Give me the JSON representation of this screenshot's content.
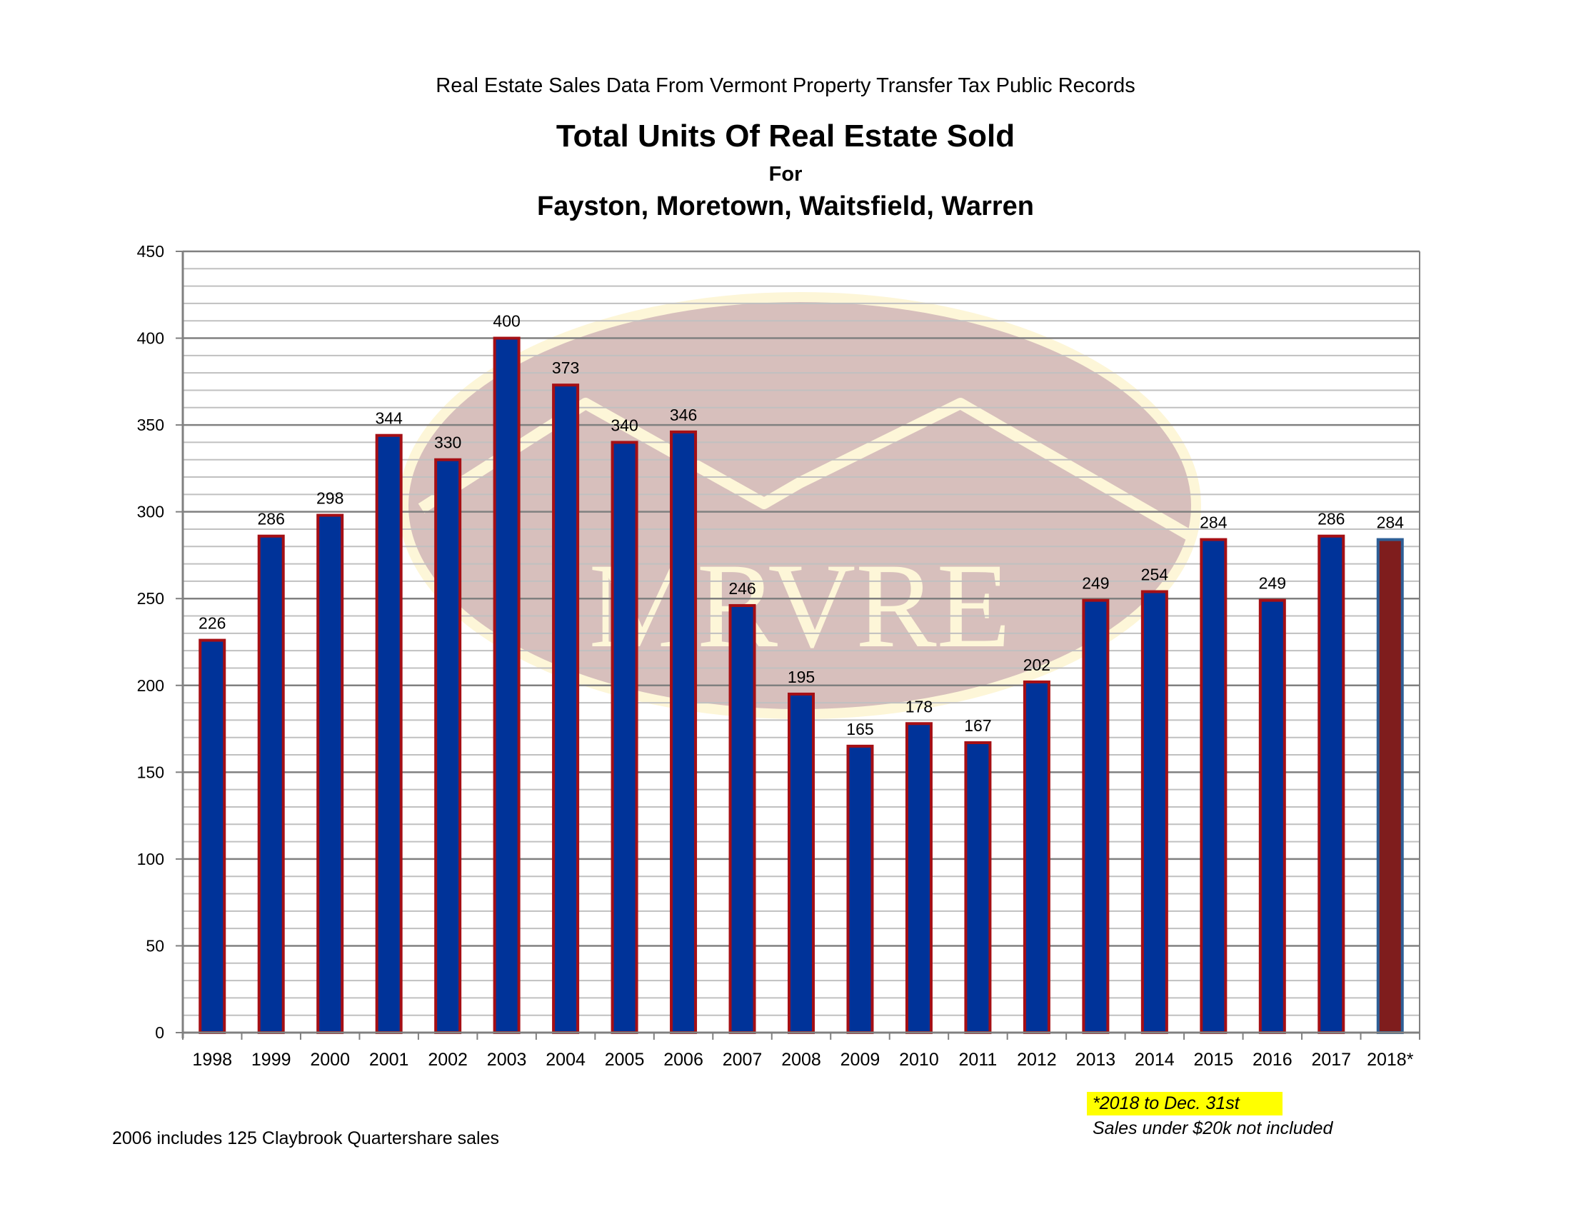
{
  "header": {
    "source_line": "Real Estate Sales Data From Vermont Property Transfer Tax Public Records",
    "title": "Total Units Of Real Estate Sold",
    "for_label": "For",
    "towns": "Fayston, Moretown, Waitsfield, Warren"
  },
  "watermark": {
    "text": "MRVRE",
    "fill_color": "#c9a9a6",
    "accent_color": "#fdf6d8"
  },
  "chart_data": {
    "type": "bar",
    "title": "Total Units Of Real Estate Sold",
    "xlabel": "",
    "ylabel": "",
    "ylim": [
      0,
      450
    ],
    "y_ticks": [
      0,
      50,
      100,
      150,
      200,
      250,
      300,
      350,
      400,
      450
    ],
    "grid": true,
    "legend": "none",
    "categories": [
      "1998",
      "1999",
      "2000",
      "2001",
      "2002",
      "2003",
      "2004",
      "2005",
      "2006",
      "2007",
      "2008",
      "2009",
      "2010",
      "2011",
      "2012",
      "2013",
      "2014",
      "2015",
      "2016",
      "2017",
      "2018*"
    ],
    "values": [
      226,
      286,
      298,
      344,
      330,
      400,
      373,
      340,
      346,
      246,
      195,
      165,
      178,
      167,
      202,
      249,
      254,
      284,
      249,
      286,
      284
    ],
    "colors": {
      "bar_fill": "#003399",
      "bar_outline": "#a50f15",
      "highlight_fill": "#7f1d1d",
      "highlight_outline": "#2e5f96",
      "highlight_index": 20,
      "major_grid": "#808080",
      "minor_grid": "#c0c0c0"
    }
  },
  "notes": {
    "footnote": "2006 includes 125 Claybrook Quartershare sales",
    "highlight_note": "*2018 to Dec. 31st",
    "second_note": "Sales under $20k not included",
    "highlight_color": "#ffff00"
  }
}
